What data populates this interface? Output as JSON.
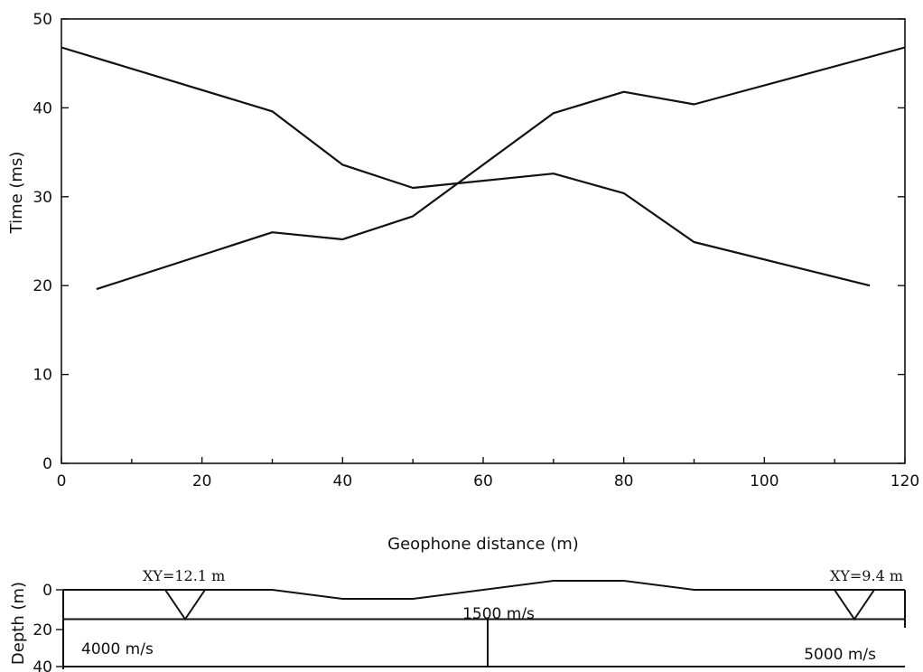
{
  "chart_data": [
    {
      "type": "line",
      "xlabel": "Geophone distance (m)",
      "ylabel": "Time (ms)",
      "xlim": [
        0,
        120
      ],
      "ylim": [
        0,
        50
      ],
      "x_ticks": [
        0,
        20,
        40,
        60,
        80,
        100,
        120
      ],
      "y_ticks": [
        0,
        10,
        20,
        30,
        40,
        50
      ],
      "grid": false,
      "series": [
        {
          "x": [
            0,
            30,
            40,
            50,
            70,
            80,
            90,
            115
          ],
          "y": [
            46.8,
            39.6,
            33.6,
            31.0,
            32.6,
            30.4,
            24.9,
            20.0
          ]
        },
        {
          "x": [
            5,
            30,
            40,
            50,
            70,
            80,
            90,
            120
          ],
          "y": [
            19.6,
            26.0,
            25.2,
            27.8,
            39.4,
            41.8,
            40.4,
            46.8
          ]
        }
      ]
    },
    {
      "type": "line",
      "xlabel": "",
      "ylabel": "Depth (m)",
      "xlim": [
        0,
        120
      ],
      "ylim": [
        40,
        0
      ],
      "y_ticks": [
        0,
        20,
        40
      ],
      "surface": {
        "x": [
          0,
          30,
          40,
          50,
          70,
          80,
          90,
          120
        ],
        "depth": [
          0,
          0,
          5,
          5,
          0,
          0,
          0,
          0
        ]
      },
      "ground_surface": {
        "x": [
          0,
          30,
          40,
          50,
          70,
          80,
          90,
          120
        ],
        "depth": [
          0,
          0,
          5,
          5,
          -5,
          -5,
          0,
          0
        ]
      },
      "refractor_depth": 15,
      "vertical_boundary_x": 62,
      "shot_points": [
        {
          "x": 18,
          "label": "XY=12.1 m"
        },
        {
          "x": 115,
          "label": "XY=9.4  m"
        }
      ],
      "velocity_labels": {
        "upper": "1500 m/s",
        "lower_left": "4000 m/s",
        "lower_right": "5000 m/s"
      }
    }
  ]
}
